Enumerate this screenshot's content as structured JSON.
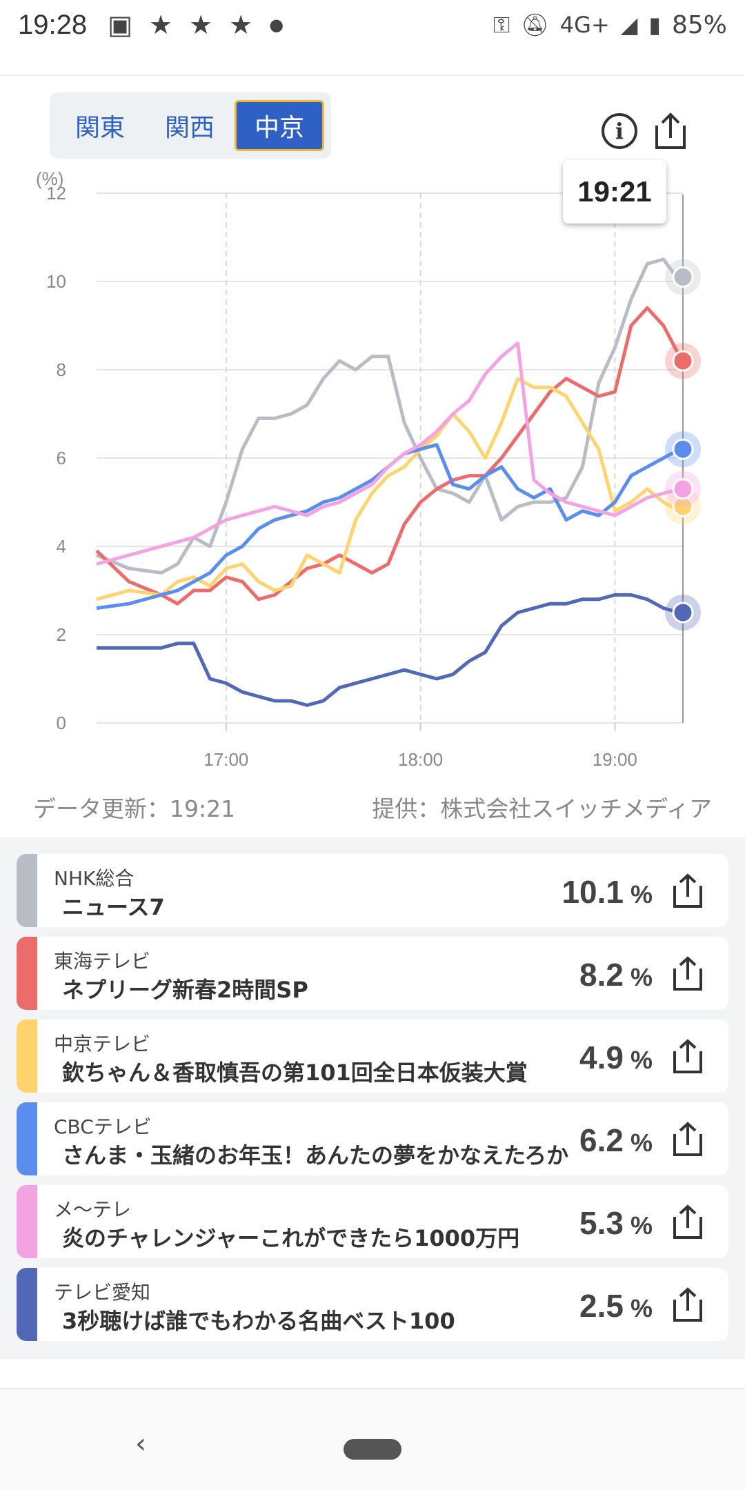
{
  "status": {
    "time": "19:28",
    "network": "4G+",
    "battery": "85%"
  },
  "region_tabs": [
    {
      "label": "関東",
      "active": false
    },
    {
      "label": "関西",
      "active": false
    },
    {
      "label": "中京",
      "active": true
    }
  ],
  "tooltip": "19:21",
  "chart_data": {
    "type": "line",
    "y_unit_label": "(%)",
    "ylim": [
      0,
      12
    ],
    "yticks": [
      "0",
      "2",
      "4",
      "6",
      "8",
      "10",
      "12"
    ],
    "x_ticks": [
      "17:00",
      "18:00",
      "19:00"
    ],
    "x_start": "16:20",
    "x_end": "19:21",
    "series": [
      {
        "name": "NHK総合",
        "color": "#b8bcc4",
        "values": [
          [
            0,
            3.8
          ],
          [
            10,
            3.5
          ],
          [
            20,
            3.4
          ],
          [
            25,
            3.6
          ],
          [
            30,
            4.2
          ],
          [
            35,
            4.0
          ],
          [
            40,
            5.0
          ],
          [
            45,
            6.2
          ],
          [
            50,
            6.9
          ],
          [
            55,
            6.9
          ],
          [
            60,
            7.0
          ],
          [
            65,
            7.2
          ],
          [
            70,
            7.8
          ],
          [
            75,
            8.2
          ],
          [
            80,
            8.0
          ],
          [
            85,
            8.3
          ],
          [
            90,
            8.3
          ],
          [
            95,
            6.8
          ],
          [
            100,
            6.0
          ],
          [
            105,
            5.3
          ],
          [
            110,
            5.2
          ],
          [
            115,
            5.0
          ],
          [
            120,
            5.6
          ],
          [
            125,
            4.6
          ],
          [
            130,
            4.9
          ],
          [
            135,
            5.0
          ],
          [
            140,
            5.0
          ],
          [
            145,
            5.1
          ],
          [
            150,
            5.8
          ],
          [
            155,
            7.7
          ],
          [
            160,
            8.5
          ],
          [
            165,
            9.6
          ],
          [
            170,
            10.4
          ],
          [
            175,
            10.5
          ],
          [
            180,
            10.0
          ],
          [
            181,
            10.1
          ]
        ]
      },
      {
        "name": "東海テレビ",
        "color": "#ec6b6b",
        "values": [
          [
            0,
            3.9
          ],
          [
            10,
            3.2
          ],
          [
            20,
            2.9
          ],
          [
            25,
            2.7
          ],
          [
            30,
            3.0
          ],
          [
            35,
            3.0
          ],
          [
            40,
            3.3
          ],
          [
            45,
            3.2
          ],
          [
            50,
            2.8
          ],
          [
            55,
            2.9
          ],
          [
            60,
            3.2
          ],
          [
            65,
            3.5
          ],
          [
            70,
            3.6
          ],
          [
            75,
            3.8
          ],
          [
            80,
            3.6
          ],
          [
            85,
            3.4
          ],
          [
            90,
            3.6
          ],
          [
            95,
            4.5
          ],
          [
            100,
            5.0
          ],
          [
            105,
            5.3
          ],
          [
            110,
            5.5
          ],
          [
            115,
            5.6
          ],
          [
            120,
            5.6
          ],
          [
            125,
            6.0
          ],
          [
            130,
            6.5
          ],
          [
            135,
            7.0
          ],
          [
            140,
            7.5
          ],
          [
            145,
            7.8
          ],
          [
            150,
            7.6
          ],
          [
            155,
            7.4
          ],
          [
            160,
            7.5
          ],
          [
            165,
            9.0
          ],
          [
            170,
            9.4
          ],
          [
            175,
            9.0
          ],
          [
            180,
            8.3
          ],
          [
            181,
            8.2
          ]
        ]
      },
      {
        "name": "中京テレビ",
        "color": "#ffd46e",
        "values": [
          [
            0,
            2.8
          ],
          [
            10,
            3.0
          ],
          [
            20,
            2.9
          ],
          [
            25,
            3.2
          ],
          [
            30,
            3.3
          ],
          [
            35,
            3.1
          ],
          [
            40,
            3.5
          ],
          [
            45,
            3.6
          ],
          [
            50,
            3.2
          ],
          [
            55,
            3.0
          ],
          [
            60,
            3.1
          ],
          [
            65,
            3.8
          ],
          [
            70,
            3.6
          ],
          [
            75,
            3.4
          ],
          [
            80,
            4.6
          ],
          [
            85,
            5.2
          ],
          [
            90,
            5.6
          ],
          [
            95,
            5.8
          ],
          [
            100,
            6.2
          ],
          [
            105,
            6.5
          ],
          [
            110,
            7.0
          ],
          [
            115,
            6.6
          ],
          [
            120,
            6.0
          ],
          [
            125,
            6.8
          ],
          [
            130,
            7.8
          ],
          [
            135,
            7.6
          ],
          [
            140,
            7.6
          ],
          [
            145,
            7.4
          ],
          [
            150,
            6.8
          ],
          [
            155,
            6.2
          ],
          [
            160,
            4.8
          ],
          [
            165,
            5.0
          ],
          [
            170,
            5.3
          ],
          [
            175,
            5.0
          ],
          [
            180,
            4.8
          ],
          [
            181,
            4.9
          ]
        ]
      },
      {
        "name": "CBCテレビ",
        "color": "#5b8def",
        "values": [
          [
            0,
            2.6
          ],
          [
            10,
            2.7
          ],
          [
            20,
            2.9
          ],
          [
            25,
            3.0
          ],
          [
            30,
            3.2
          ],
          [
            35,
            3.4
          ],
          [
            40,
            3.8
          ],
          [
            45,
            4.0
          ],
          [
            50,
            4.4
          ],
          [
            55,
            4.6
          ],
          [
            60,
            4.7
          ],
          [
            65,
            4.8
          ],
          [
            70,
            5.0
          ],
          [
            75,
            5.1
          ],
          [
            80,
            5.3
          ],
          [
            85,
            5.5
          ],
          [
            90,
            5.8
          ],
          [
            95,
            6.1
          ],
          [
            100,
            6.2
          ],
          [
            105,
            6.3
          ],
          [
            110,
            5.4
          ],
          [
            115,
            5.3
          ],
          [
            120,
            5.6
          ],
          [
            125,
            5.8
          ],
          [
            130,
            5.3
          ],
          [
            135,
            5.1
          ],
          [
            140,
            5.3
          ],
          [
            145,
            4.6
          ],
          [
            150,
            4.8
          ],
          [
            155,
            4.7
          ],
          [
            160,
            5.0
          ],
          [
            165,
            5.6
          ],
          [
            170,
            5.8
          ],
          [
            175,
            6.0
          ],
          [
            180,
            6.2
          ],
          [
            181,
            6.2
          ]
        ]
      },
      {
        "name": "メ〜テレ",
        "color": "#f3a3e1",
        "values": [
          [
            0,
            3.6
          ],
          [
            10,
            3.8
          ],
          [
            20,
            4.0
          ],
          [
            25,
            4.1
          ],
          [
            30,
            4.2
          ],
          [
            35,
            4.4
          ],
          [
            40,
            4.6
          ],
          [
            45,
            4.7
          ],
          [
            50,
            4.8
          ],
          [
            55,
            4.9
          ],
          [
            60,
            4.8
          ],
          [
            65,
            4.7
          ],
          [
            70,
            4.9
          ],
          [
            75,
            5.0
          ],
          [
            80,
            5.2
          ],
          [
            85,
            5.4
          ],
          [
            90,
            5.8
          ],
          [
            95,
            6.1
          ],
          [
            100,
            6.3
          ],
          [
            105,
            6.6
          ],
          [
            110,
            7.0
          ],
          [
            115,
            7.3
          ],
          [
            120,
            7.9
          ],
          [
            125,
            8.3
          ],
          [
            130,
            8.6
          ],
          [
            135,
            5.5
          ],
          [
            140,
            5.2
          ],
          [
            145,
            5.0
          ],
          [
            150,
            4.9
          ],
          [
            155,
            4.8
          ],
          [
            160,
            4.7
          ],
          [
            165,
            4.9
          ],
          [
            170,
            5.1
          ],
          [
            175,
            5.2
          ],
          [
            180,
            5.3
          ],
          [
            181,
            5.3
          ]
        ]
      },
      {
        "name": "テレビ愛知",
        "color": "#5068b5",
        "values": [
          [
            0,
            1.7
          ],
          [
            10,
            1.7
          ],
          [
            20,
            1.7
          ],
          [
            25,
            1.8
          ],
          [
            30,
            1.8
          ],
          [
            35,
            1.0
          ],
          [
            40,
            0.9
          ],
          [
            45,
            0.7
          ],
          [
            50,
            0.6
          ],
          [
            55,
            0.5
          ],
          [
            60,
            0.5
          ],
          [
            65,
            0.4
          ],
          [
            70,
            0.5
          ],
          [
            75,
            0.8
          ],
          [
            80,
            0.9
          ],
          [
            85,
            1.0
          ],
          [
            90,
            1.1
          ],
          [
            95,
            1.2
          ],
          [
            100,
            1.1
          ],
          [
            105,
            1.0
          ],
          [
            110,
            1.1
          ],
          [
            115,
            1.4
          ],
          [
            120,
            1.6
          ],
          [
            125,
            2.2
          ],
          [
            130,
            2.5
          ],
          [
            135,
            2.6
          ],
          [
            140,
            2.7
          ],
          [
            145,
            2.7
          ],
          [
            150,
            2.8
          ],
          [
            155,
            2.8
          ],
          [
            160,
            2.9
          ],
          [
            165,
            2.9
          ],
          [
            170,
            2.8
          ],
          [
            175,
            2.6
          ],
          [
            180,
            2.5
          ],
          [
            181,
            2.5
          ]
        ]
      }
    ]
  },
  "meta": {
    "updated": "データ更新：19:21",
    "provider": "提供：株式会社スイッチメディア"
  },
  "list": [
    {
      "channel": "NHK総合",
      "program": "ニュース7",
      "value": "10.1",
      "unit": "%",
      "color": "#b8bcc4"
    },
    {
      "channel": "東海テレビ",
      "program": "ネプリーグ新春2時間SP",
      "value": "8.2",
      "unit": "%",
      "color": "#ec6b6b"
    },
    {
      "channel": "中京テレビ",
      "program": "欽ちゃん＆香取慎吾の第101回全日本仮装大賞",
      "value": "4.9",
      "unit": "%",
      "color": "#ffd46e"
    },
    {
      "channel": "CBCテレビ",
      "program": "さんま・玉緒のお年玉！あんたの夢をかなえたろか",
      "value": "6.2",
      "unit": "%",
      "color": "#5b8def"
    },
    {
      "channel": "メ〜テレ",
      "program": "炎のチャレンジャーこれができたら1000万円",
      "value": "5.3",
      "unit": "%",
      "color": "#f3a3e1"
    },
    {
      "channel": "テレビ愛知",
      "program": "3秒聴けば誰でもわかる名曲ベスト100",
      "value": "2.5",
      "unit": "%",
      "color": "#5068b5"
    }
  ]
}
